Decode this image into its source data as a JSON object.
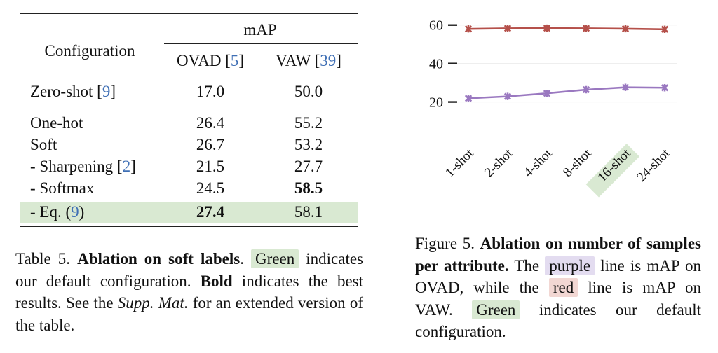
{
  "table": {
    "header": {
      "configuration": "Configuration",
      "group_label": "mAP",
      "col1_name": "OVAD",
      "col1_ref": "5",
      "col2_name": "VAW",
      "col2_ref": "39"
    },
    "zero_shot": {
      "label": "Zero-shot",
      "ref": "9",
      "ovad": "17.0",
      "vaw": "50.0"
    },
    "rows": [
      {
        "label": "One-hot",
        "ovad": "26.4",
        "vaw": "55.2"
      },
      {
        "label": "Soft",
        "ovad": "26.7",
        "vaw": "53.2"
      },
      {
        "label": "- Sharpening",
        "ref": "2",
        "ovad": "21.5",
        "vaw": "27.7"
      },
      {
        "label": "- Softmax",
        "ovad": "24.5",
        "vaw": "58.5"
      },
      {
        "label": "- Eq.",
        "ref": "9",
        "ovad": "27.4",
        "vaw": "58.1"
      }
    ]
  },
  "table_caption": {
    "prefix": "Table 5.",
    "title": "Ablation on soft labels",
    "period": ".",
    "green": "Green",
    "t1": " indicates our default configuration. ",
    "bold": "Bold",
    "t2": " indicates the best results. See the ",
    "supp": "Supp. Mat.",
    "t3": " for an extended version of the table."
  },
  "figure_caption": {
    "prefix": "Figure 5.",
    "title": "Ablation on number of samples per attribute.",
    "t1": " The ",
    "purple": "purple",
    "t2": " line is mAP on OVAD, while the ",
    "red": "red",
    "t3": " line is mAP on VAW. ",
    "green": "Green",
    "t4": " indicates our default configuration."
  },
  "colors": {
    "highlight_green": "#d9e9d2",
    "highlight_purple": "#e3dcf0",
    "highlight_red": "#f2d7d3",
    "series_vaw": "#b5504a",
    "series_ovad": "#9a78c0",
    "citation_blue": "#3f6fb5"
  },
  "chart_data": {
    "type": "line",
    "categories": [
      "1-shot",
      "2-shot",
      "4-shot",
      "8-shot",
      "16-shot",
      "24-shot"
    ],
    "highlighted_category": "16-shot",
    "yticks": [
      20,
      40,
      60
    ],
    "ylim": [
      -2,
      65
    ],
    "series": [
      {
        "name": "VAW",
        "color": "#b5504a",
        "values": [
          58.0,
          58.3,
          58.4,
          58.3,
          58.1,
          57.8
        ]
      },
      {
        "name": "OVAD",
        "color": "#9a78c0",
        "values": [
          21.9,
          22.9,
          24.5,
          26.4,
          27.6,
          27.4
        ]
      }
    ]
  }
}
